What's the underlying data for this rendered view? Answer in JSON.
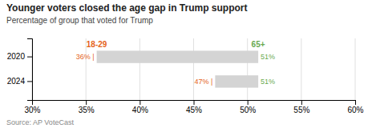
{
  "chart_data": {
    "type": "bar",
    "orientation": "horizontal",
    "title": "Younger voters closed the age gap in Trump support",
    "subtitle": "Percentage of group that voted for Trump",
    "source": "Source: AP VoteCast",
    "categories": [
      "2020",
      "2024"
    ],
    "start": [
      36,
      47
    ],
    "start_labels": [
      "36% |",
      "47% |"
    ],
    "values": [
      51,
      51
    ],
    "value_labels": [
      "51%",
      "51%"
    ],
    "color": "#d4d4d4",
    "annotations": [
      {
        "text": "18-29",
        "x": 36,
        "color": "#e5631a"
      },
      {
        "text": "65+",
        "x": 51,
        "color": "#6aaa50"
      }
    ],
    "xlim": [
      30,
      60
    ],
    "xticks": [
      {
        "value": 30,
        "label": "30%"
      },
      {
        "value": 35,
        "label": "35%"
      },
      {
        "value": 40,
        "label": "40%"
      },
      {
        "value": 45,
        "label": "45%"
      },
      {
        "value": 50,
        "label": "50%"
      },
      {
        "value": 55,
        "label": "55%"
      },
      {
        "value": 60,
        "label": "60%"
      }
    ],
    "grid": true,
    "data_labels": true
  }
}
